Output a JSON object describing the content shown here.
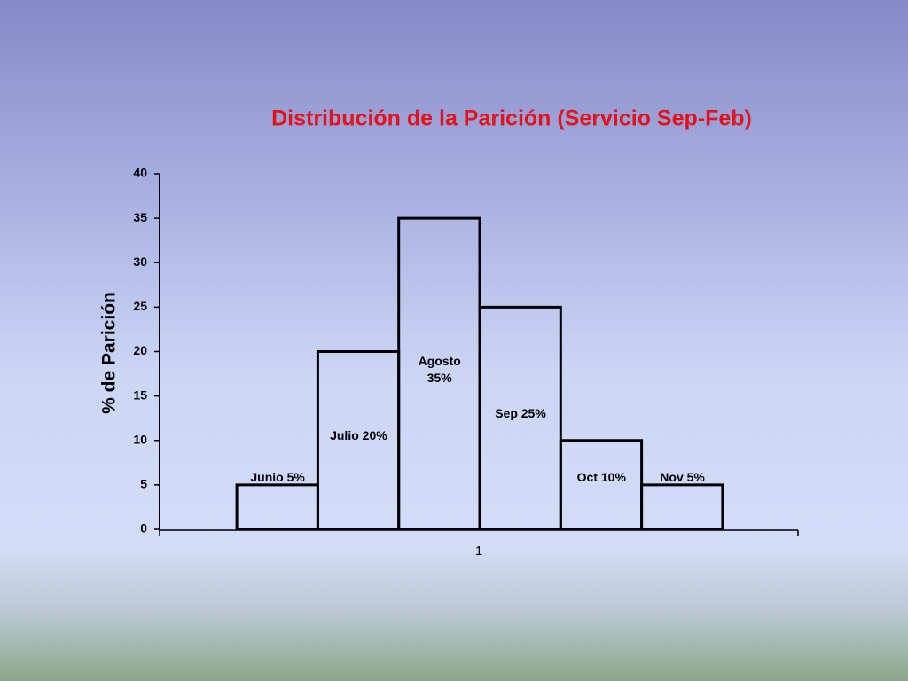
{
  "chart_data": {
    "type": "bar",
    "title": "Distribución de la Parición (Servicio Sep-Feb)",
    "y_label": "% de Parición",
    "categories": [
      "1"
    ],
    "series": [
      {
        "name": "Junio 5%",
        "color": "#000000",
        "values": [
          5
        ]
      },
      {
        "name": "Julio 20%",
        "color": "#000000",
        "values": [
          20
        ]
      },
      {
        "name": "Agosto\n35%",
        "color": "#000000",
        "values": [
          35
        ]
      },
      {
        "name": "Sep 25%",
        "color": "#000000",
        "values": [
          25
        ]
      },
      {
        "name": "Oct 10%",
        "color": "#000000",
        "values": [
          10
        ]
      },
      {
        "name": "Nov 5%",
        "color": "#000000",
        "values": [
          5
        ]
      }
    ],
    "ylim": [
      0,
      40
    ],
    "yticks": [
      0,
      5,
      10,
      15,
      20,
      25,
      30,
      35,
      40
    ],
    "grid": false
  }
}
